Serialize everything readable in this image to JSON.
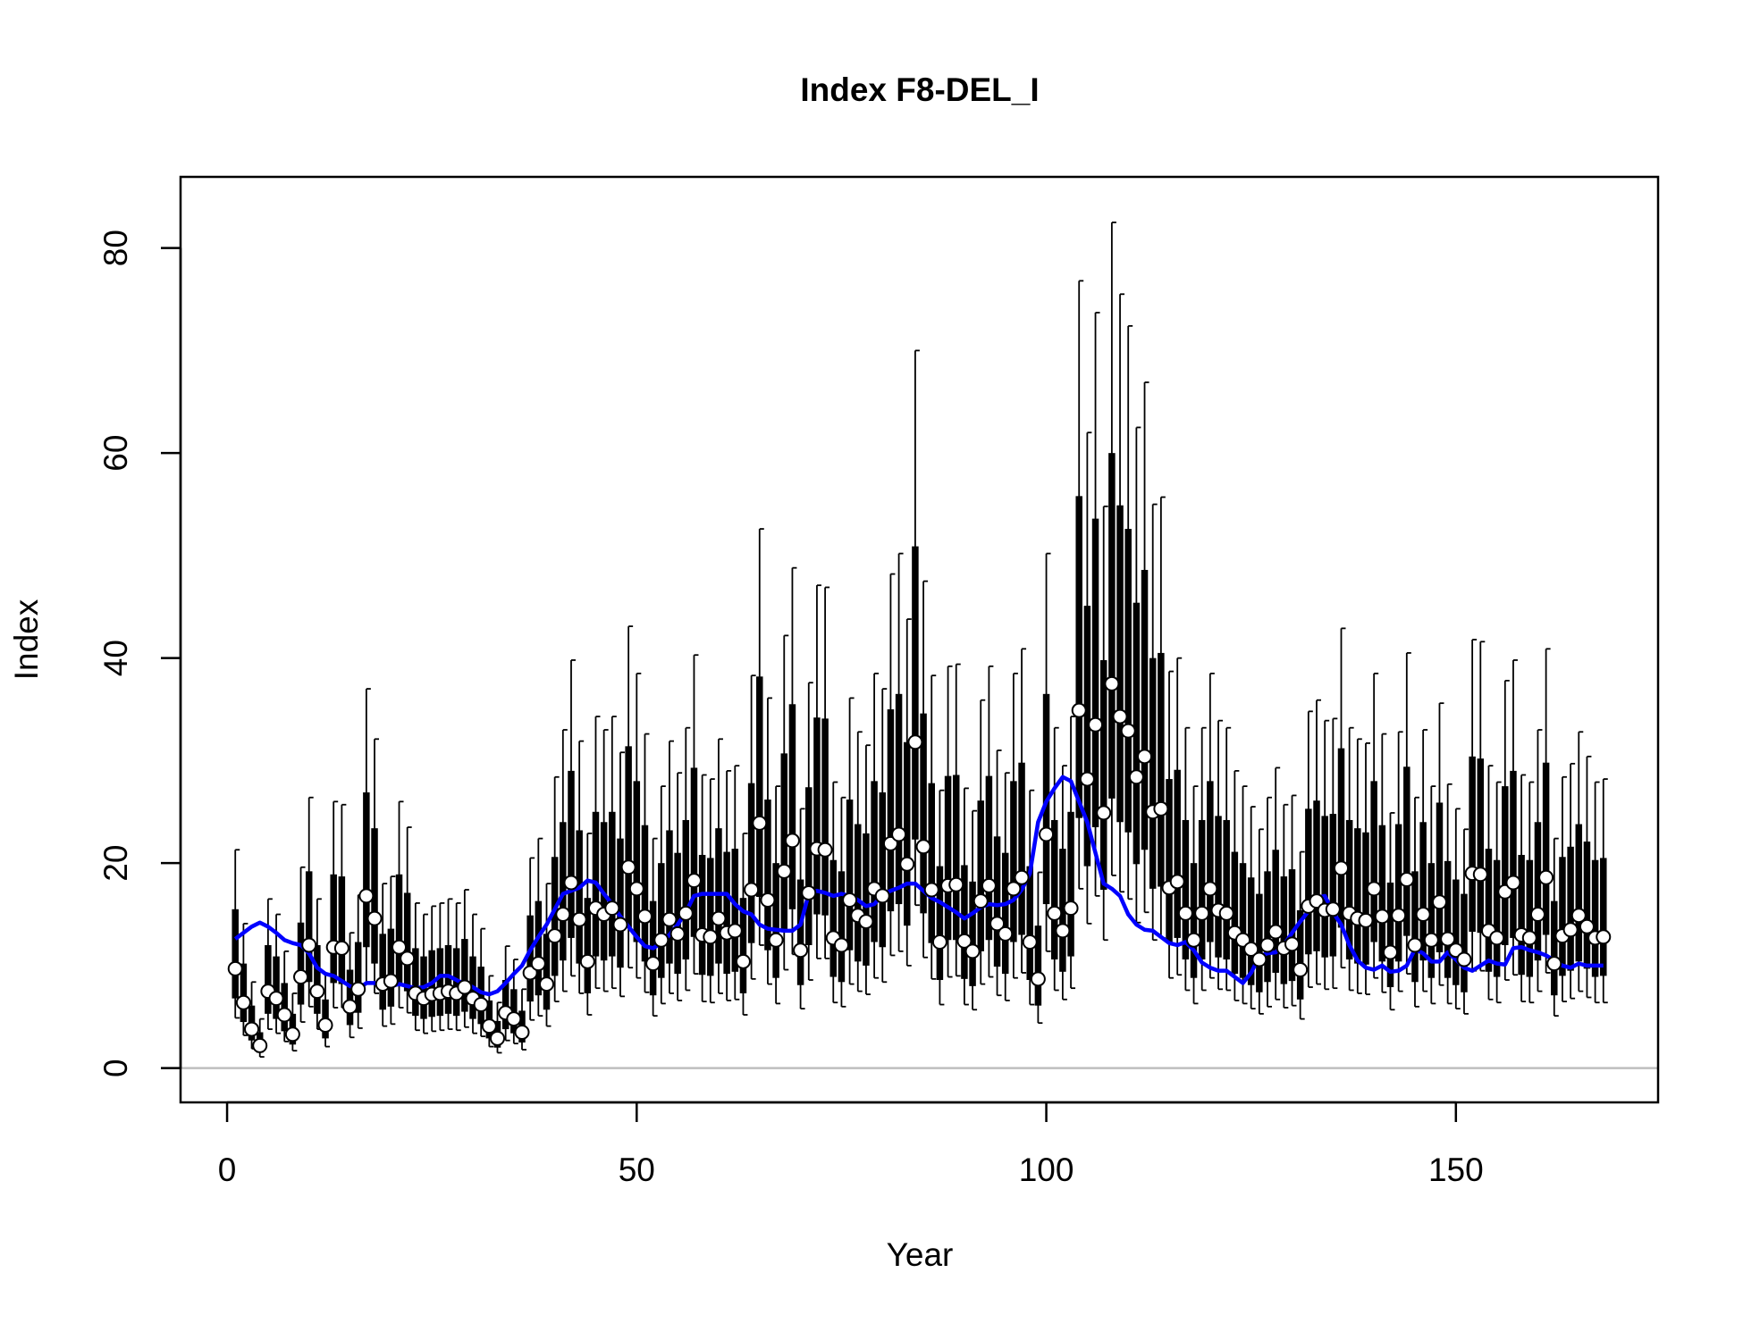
{
  "chart_data": {
    "type": "errorbar",
    "title": "Index F8-DEL_I",
    "xlabel": "Year",
    "ylabel": "Index",
    "xlim": [
      -5.68,
      174.68
    ],
    "ylim": [
      -3.34,
      86.94
    ],
    "xticks": [
      0,
      50,
      100,
      150
    ],
    "yticks": [
      0,
      20,
      40,
      60,
      80
    ],
    "hline": 0,
    "hline_color": "#bebebe",
    "color": "#000000",
    "point_fill": "#ffffff",
    "fit_color": "#0000ff",
    "x": [
      1,
      2,
      3,
      4,
      5,
      6,
      7,
      8,
      9,
      10,
      11,
      12,
      13,
      14,
      15,
      16,
      17,
      18,
      19,
      20,
      21,
      22,
      23,
      24,
      25,
      26,
      27,
      28,
      29,
      30,
      31,
      32,
      33,
      34,
      35,
      36,
      37,
      38,
      39,
      40,
      41,
      42,
      43,
      44,
      45,
      46,
      47,
      48,
      49,
      50,
      51,
      52,
      53,
      54,
      55,
      56,
      57,
      58,
      59,
      60,
      61,
      62,
      63,
      64,
      65,
      66,
      67,
      68,
      69,
      70,
      71,
      72,
      73,
      74,
      75,
      76,
      77,
      78,
      79,
      80,
      81,
      82,
      83,
      84,
      85,
      86,
      87,
      88,
      89,
      90,
      91,
      92,
      93,
      94,
      95,
      96,
      97,
      98,
      99,
      100,
      101,
      102,
      103,
      104,
      105,
      106,
      107,
      108,
      109,
      110,
      111,
      112,
      113,
      114,
      115,
      116,
      117,
      118,
      119,
      120,
      121,
      122,
      123,
      124,
      125,
      126,
      127,
      128,
      129,
      130,
      131,
      132,
      133,
      134,
      135,
      136,
      137,
      138,
      139,
      140,
      141,
      142,
      143,
      144,
      145,
      146,
      147,
      148,
      149,
      150,
      151,
      152,
      153,
      154,
      155,
      156,
      157,
      158,
      159,
      160,
      161,
      162,
      163,
      164,
      165,
      166,
      167,
      168
    ],
    "values": [
      9.7,
      6.4,
      3.8,
      2.2,
      7.5,
      6.8,
      5.2,
      3.3,
      8.9,
      12,
      7.5,
      4.2,
      11.8,
      11.7,
      6,
      7.7,
      16.8,
      14.6,
      8.2,
      8.5,
      11.8,
      10.7,
      7.3,
      6.8,
      7.2,
      7.3,
      7.5,
      7.3,
      7.9,
      6.8,
      6.2,
      4.1,
      2.9,
      5.4,
      4.8,
      3.5,
      9.3,
      10.2,
      8.2,
      12.9,
      15,
      18.1,
      14.5,
      10.4,
      15.6,
      15,
      15.6,
      14,
      19.6,
      17.5,
      14.8,
      10.2,
      12.5,
      14.5,
      13.1,
      15.1,
      18.3,
      13,
      12.8,
      14.6,
      13.2,
      13.4,
      10.4,
      17.4,
      23.9,
      16.4,
      12.5,
      19.2,
      22.2,
      11.5,
      17.1,
      21.4,
      21.3,
      12.7,
      12,
      16.4,
      14.9,
      14.3,
      17.5,
      16.8,
      21.9,
      22.8,
      19.9,
      31.8,
      21.6,
      17.4,
      12.3,
      17.8,
      17.9,
      12.4,
      11.4,
      16.3,
      17.8,
      14.1,
      13.1,
      17.5,
      18.6,
      12.3,
      8.7,
      22.8,
      15.1,
      13.4,
      15.6,
      34.9,
      28.2,
      33.5,
      24.9,
      37.5,
      34.3,
      32.9,
      28.4,
      30.4,
      25,
      25.3,
      17.6,
      18.2,
      15.1,
      12.5,
      15.1,
      17.5,
      15.4,
      15.1,
      13.2,
      12.5,
      11.6,
      10.6,
      12,
      13.3,
      11.7,
      12.1,
      9.6,
      15.8,
      16.3,
      15.4,
      15.5,
      19.5,
      15.1,
      14.6,
      14.4,
      17.5,
      14.8,
      11.3,
      14.9,
      18.4,
      12,
      15,
      12.5,
      16.2,
      12.6,
      11.5,
      10.6,
      19,
      18.9,
      13.4,
      12.7,
      17.2,
      18.1,
      13,
      12.7,
      15,
      18.6,
      10.2,
      12.9,
      13.5,
      14.9,
      13.8,
      12.7,
      12.8
    ],
    "upper": [
      21.3,
      14.1,
      8.4,
      4.8,
      16.5,
      15,
      11.4,
      7.3,
      19.6,
      26.4,
      16.5,
      9.2,
      26,
      25.7,
      13.2,
      16.9,
      37,
      32.1,
      18,
      18.7,
      26,
      23.5,
      16.1,
      15,
      15.8,
      16.1,
      16.5,
      16.1,
      17.4,
      15,
      13.6,
      9,
      6.4,
      11.9,
      10.6,
      7.7,
      20.5,
      22.4,
      18,
      28.4,
      33,
      39.8,
      31.9,
      22.9,
      34.3,
      33,
      34.3,
      30.8,
      43.1,
      38.5,
      32.6,
      22.4,
      27.5,
      31.9,
      28.8,
      33.2,
      40.3,
      28.6,
      28.2,
      32.1,
      29,
      29.5,
      22.9,
      38.3,
      52.6,
      36.1,
      27.5,
      42.2,
      48.8,
      25.3,
      37.6,
      47.1,
      46.9,
      27.9,
      26.4,
      36.1,
      32.8,
      31.5,
      38.5,
      37,
      48.2,
      50.2,
      43.8,
      70,
      47.5,
      38.3,
      27.1,
      39.2,
      39.4,
      27.3,
      25.1,
      35.9,
      39.2,
      31,
      28.8,
      38.5,
      40.9,
      27.1,
      19.1,
      50.2,
      33.2,
      29.5,
      34.3,
      76.8,
      62,
      73.7,
      54.8,
      82.5,
      75.5,
      72.4,
      62.5,
      66.9,
      55,
      55.7,
      38.7,
      40,
      33.2,
      27.5,
      33.2,
      38.5,
      33.9,
      33.2,
      29,
      27.5,
      25.5,
      23.3,
      26.4,
      29.3,
      25.7,
      26.6,
      21.1,
      34.8,
      35.9,
      33.9,
      34.1,
      42.9,
      33.2,
      32.1,
      31.7,
      38.5,
      32.6,
      24.9,
      32.8,
      40.5,
      26.4,
      33,
      27.5,
      35.6,
      27.7,
      25.3,
      23.3,
      41.8,
      41.6,
      29.5,
      27.9,
      37.8,
      39.8,
      28.6,
      27.9,
      33,
      40.9,
      22.4,
      28.4,
      29.7,
      32.8,
      30.4,
      27.9,
      28.2
    ],
    "box_upper": [
      15.5,
      10.2,
      6.1,
      3.5,
      12,
      10.9,
      8.3,
      5.3,
      14.2,
      19.2,
      12,
      6.7,
      18.9,
      18.7,
      9.6,
      12.3,
      26.9,
      23.4,
      13.1,
      13.6,
      18.9,
      17.1,
      11.7,
      10.9,
      11.5,
      11.7,
      12,
      11.7,
      12.6,
      10.9,
      9.9,
      6.6,
      4.6,
      8.6,
      7.7,
      5.6,
      14.9,
      16.3,
      13.1,
      20.6,
      24,
      29,
      23.2,
      16.6,
      25,
      24,
      25,
      22.4,
      31.4,
      28,
      23.7,
      16.3,
      20,
      23.2,
      21,
      24.2,
      29.3,
      20.8,
      20.5,
      23.4,
      21.1,
      21.4,
      16.6,
      27.8,
      38.2,
      26.2,
      20,
      30.7,
      35.5,
      18.4,
      27.4,
      34.2,
      34.1,
      20.3,
      19.2,
      26.2,
      23.8,
      22.9,
      28,
      26.9,
      35,
      36.5,
      31.8,
      50.9,
      34.6,
      27.8,
      19.7,
      28.5,
      28.6,
      19.8,
      18.2,
      26.1,
      28.5,
      22.6,
      21,
      28,
      29.8,
      19.7,
      13.9,
      36.5,
      24.2,
      21.4,
      25,
      55.8,
      45.1,
      53.6,
      39.8,
      60,
      54.9,
      52.6,
      45.4,
      48.6,
      40,
      40.5,
      28.2,
      29.1,
      24.2,
      20,
      24.2,
      28,
      24.6,
      24.2,
      21.1,
      20,
      18.6,
      17,
      19.2,
      21.3,
      18.7,
      19.4,
      15.4,
      25.3,
      26.1,
      24.6,
      24.8,
      31.2,
      24.2,
      23.4,
      23,
      28,
      23.7,
      18.1,
      23.8,
      29.4,
      19.2,
      24,
      20,
      25.9,
      20.2,
      18.4,
      17,
      30.4,
      30.2,
      21.4,
      20.3,
      27.5,
      29,
      20.8,
      20.3,
      24,
      29.8,
      16.3,
      20.6,
      21.6,
      23.8,
      22.1,
      20.3,
      20.5
    ],
    "box_lower": [
      6.8,
      4.5,
      2.7,
      1.5,
      5.3,
      4.8,
      3.6,
      2.3,
      6.2,
      8.4,
      5.3,
      2.9,
      8.3,
      8.2,
      4.2,
      5.4,
      11.8,
      10.2,
      5.7,
      6,
      8.3,
      7.5,
      5.1,
      4.8,
      5,
      5.1,
      5.3,
      5.1,
      5.5,
      4.8,
      4.3,
      2.9,
      2,
      3.8,
      3.4,
      2.5,
      6.5,
      7.1,
      5.7,
      9,
      10.5,
      12.7,
      10.2,
      7.3,
      10.9,
      10.5,
      10.9,
      9.8,
      13.7,
      12.3,
      10.4,
      7.1,
      8.8,
      10.2,
      9.2,
      10.6,
      12.8,
      9.1,
      9,
      10.2,
      9.2,
      9.4,
      7.3,
      12.2,
      16.7,
      11.5,
      8.8,
      13.4,
      15.5,
      8.1,
      12,
      15,
      14.9,
      8.9,
      8.4,
      11.5,
      10.4,
      10,
      12.3,
      11.8,
      15.3,
      16,
      13.9,
      22.3,
      15.1,
      12.2,
      8.6,
      12.5,
      12.5,
      8.7,
      8,
      11.4,
      12.5,
      9.9,
      9.2,
      12.3,
      13,
      8.6,
      6.1,
      16,
      10.6,
      9.4,
      10.9,
      24.4,
      19.7,
      23.5,
      17.4,
      26.3,
      24,
      23,
      19.9,
      21.3,
      17.5,
      17.7,
      12.3,
      12.7,
      10.6,
      8.8,
      10.6,
      12.3,
      10.8,
      10.6,
      9.2,
      8.8,
      8.1,
      7.4,
      8.4,
      9.3,
      8.2,
      8.5,
      6.7,
      11.1,
      11.4,
      10.8,
      10.9,
      13.7,
      10.6,
      10.2,
      10.1,
      12.3,
      10.4,
      7.9,
      10.4,
      12.9,
      8.4,
      10.5,
      8.8,
      11.3,
      8.8,
      8.1,
      7.4,
      13.3,
      13.2,
      9.4,
      8.9,
      12,
      12.7,
      9.1,
      8.9,
      10.5,
      13,
      7.1,
      9,
      9.5,
      10.4,
      9.7,
      8.9,
      9
    ],
    "lower": [
      4.9,
      3.2,
      1.9,
      1.1,
      3.8,
      3.4,
      2.6,
      1.7,
      4.5,
      6,
      3.8,
      2.1,
      5.9,
      5.9,
      3,
      3.9,
      8.4,
      7.3,
      4.1,
      4.3,
      5.9,
      5.4,
      3.7,
      3.4,
      3.6,
      3.7,
      3.8,
      3.7,
      4,
      3.4,
      3.1,
      2.1,
      1.5,
      2.7,
      2.4,
      1.8,
      4.7,
      5.1,
      4.1,
      6.5,
      7.5,
      9,
      7.3,
      5.2,
      7.8,
      7.5,
      7.8,
      7,
      9.8,
      8.8,
      7.4,
      5.1,
      6.3,
      7.3,
      6.6,
      7.6,
      9.2,
      6.5,
      6.4,
      7.3,
      6.6,
      6.7,
      5.2,
      8.7,
      12,
      8.2,
      6.3,
      9.6,
      11.1,
      5.8,
      8.6,
      10.7,
      10.7,
      6.4,
      6,
      8.2,
      7.5,
      7.2,
      8.8,
      8.4,
      11,
      11.4,
      10,
      15.9,
      10.8,
      8.7,
      6.2,
      8.9,
      9,
      6.2,
      5.7,
      8.2,
      8.9,
      7.1,
      6.6,
      8.8,
      9.3,
      6.2,
      4.4,
      11.4,
      7.6,
      6.7,
      7.8,
      17.5,
      14.1,
      16.8,
      12.5,
      18.8,
      17.2,
      16.5,
      14.2,
      15.2,
      12.5,
      12.7,
      8.8,
      9.1,
      7.6,
      6.3,
      7.6,
      8.8,
      7.7,
      7.6,
      6.6,
      6.3,
      5.8,
      5.3,
      6,
      6.7,
      5.9,
      6.1,
      4.8,
      7.9,
      8.2,
      7.7,
      7.8,
      9.8,
      7.6,
      7.3,
      7.2,
      8.8,
      7.4,
      5.7,
      7.5,
      9.2,
      6,
      7.5,
      6.3,
      8.1,
      6.3,
      5.8,
      5.3,
      9.5,
      9.5,
      6.7,
      6.4,
      8.6,
      9.1,
      6.5,
      6.4,
      7.5,
      9.3,
      5.1,
      6.5,
      6.8,
      7.5,
      6.9,
      6.4,
      6.4
    ],
    "fit": [
      12.6,
      13.2,
      13.8,
      14.2,
      13.8,
      13.2,
      12.5,
      12.2,
      12,
      11.2,
      9.8,
      9.2,
      9,
      8.5,
      8,
      7.7,
      8.3,
      8.3,
      8,
      8,
      8.2,
      8,
      7.8,
      7.9,
      8.3,
      9,
      9,
      8.6,
      8.2,
      7.9,
      7.4,
      7.2,
      7.5,
      8.3,
      9.2,
      10,
      11.5,
      12.8,
      14,
      15.5,
      17,
      17.3,
      17.6,
      18.3,
      18.1,
      17,
      16,
      14.8,
      13.8,
      12.8,
      11.9,
      11.7,
      12.2,
      13,
      14,
      15.2,
      16.8,
      17,
      17,
      17,
      17,
      16,
      15.3,
      15,
      14,
      13.6,
      13.5,
      13.4,
      13.4,
      14,
      17,
      17.3,
      17.1,
      16.8,
      17,
      16.8,
      16.4,
      15.8,
      16,
      16.9,
      17.3,
      17.6,
      18,
      18,
      17.3,
      16.6,
      16.2,
      15.7,
      15.2,
      14.6,
      15.1,
      15.7,
      16,
      15.9,
      16,
      16.4,
      17.4,
      19,
      24,
      26,
      27.3,
      28.4,
      28,
      26,
      24,
      21,
      18,
      17.5,
      16.8,
      15,
      14,
      13.5,
      13.4,
      12.8,
      12.2,
      12,
      12.3,
      11.5,
      10.3,
      9.8,
      9.5,
      9.5,
      8.9,
      8.3,
      9.3,
      10.9,
      11.2,
      11.3,
      12,
      13.2,
      14.3,
      15.3,
      16.6,
      16.8,
      15.2,
      14,
      12,
      10.5,
      9.8,
      9.6,
      10,
      9.4,
      9.5,
      10,
      11.6,
      11.2,
      10.4,
      10.4,
      11.3,
      10.6,
      9.8,
      9.5,
      10,
      10.5,
      10.2,
      10.1,
      11.7,
      11.8,
      11.5,
      11.3,
      11,
      10.5,
      10,
      9.8,
      10.2,
      10,
      10,
      10
    ]
  }
}
